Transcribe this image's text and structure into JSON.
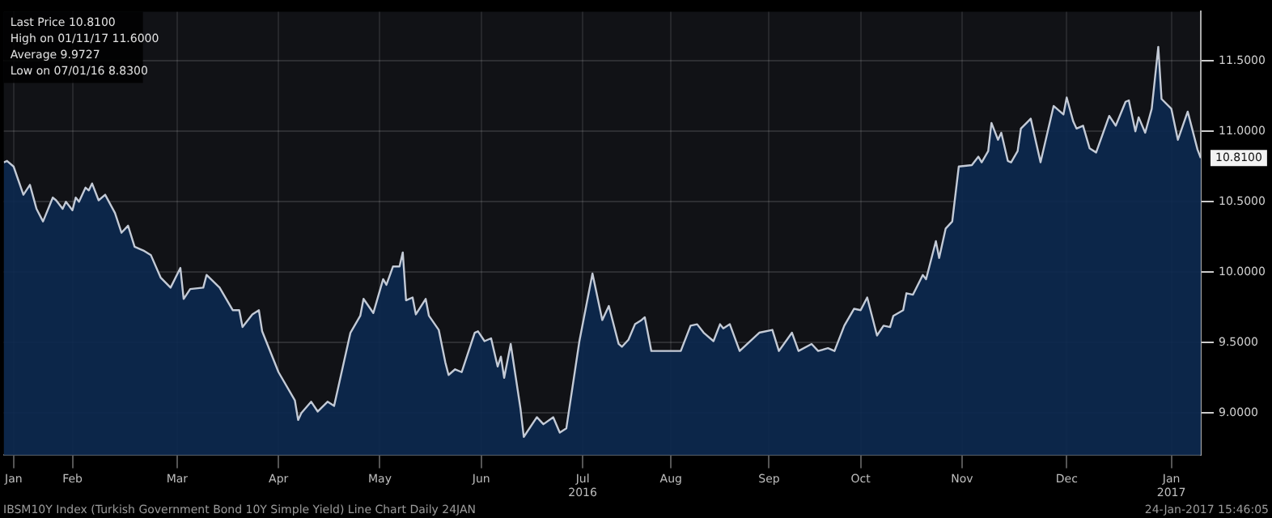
{
  "chart_data": {
    "type": "area",
    "x": [
      "2016-01-24",
      "2016-01-25",
      "2016-01-27",
      "2016-01-30",
      "2016-02-01",
      "2016-02-03",
      "2016-02-05",
      "2016-02-08",
      "2016-02-09",
      "2016-02-11",
      "2016-02-12",
      "2016-02-14",
      "2016-02-15",
      "2016-02-16",
      "2016-02-18",
      "2016-02-19",
      "2016-02-20",
      "2016-02-22",
      "2016-02-24",
      "2016-02-27",
      "2016-02-29",
      "2016-03-02",
      "2016-03-04",
      "2016-03-07",
      "2016-03-09",
      "2016-03-12",
      "2016-03-15",
      "2016-03-18",
      "2016-03-19",
      "2016-03-21",
      "2016-03-25",
      "2016-03-26",
      "2016-03-30",
      "2016-04-03",
      "2016-04-05",
      "2016-04-06",
      "2016-04-09",
      "2016-04-11",
      "2016-04-12",
      "2016-04-17",
      "2016-04-22",
      "2016-04-23",
      "2016-04-24",
      "2016-04-27",
      "2016-04-29",
      "2016-05-02",
      "2016-05-04",
      "2016-05-09",
      "2016-05-12",
      "2016-05-13",
      "2016-05-16",
      "2016-05-19",
      "2016-05-20",
      "2016-05-22",
      "2016-05-24",
      "2016-05-25",
      "2016-05-26",
      "2016-05-28",
      "2016-05-29",
      "2016-06-01",
      "2016-06-02",
      "2016-06-05",
      "2016-06-07",
      "2016-06-08",
      "2016-06-10",
      "2016-06-12",
      "2016-06-16",
      "2016-06-17",
      "2016-06-19",
      "2016-06-21",
      "2016-06-23",
      "2016-06-24",
      "2016-06-25",
      "2016-06-27",
      "2016-06-30",
      "2016-07-01",
      "2016-07-05",
      "2016-07-07",
      "2016-07-10",
      "2016-07-12",
      "2016-07-14",
      "2016-07-18",
      "2016-07-22",
      "2016-07-25",
      "2016-07-27",
      "2016-07-30",
      "2016-07-31",
      "2016-08-02",
      "2016-08-04",
      "2016-08-06",
      "2016-08-07",
      "2016-08-09",
      "2016-08-18",
      "2016-08-21",
      "2016-08-23",
      "2016-08-25",
      "2016-08-28",
      "2016-08-30",
      "2016-08-31",
      "2016-09-02",
      "2016-09-05",
      "2016-09-11",
      "2016-09-15",
      "2016-09-17",
      "2016-09-21",
      "2016-09-23",
      "2016-09-27",
      "2016-09-29",
      "2016-10-02",
      "2016-10-04",
      "2016-10-07",
      "2016-10-10",
      "2016-10-12",
      "2016-10-14",
      "2016-10-17",
      "2016-10-19",
      "2016-10-21",
      "2016-10-22",
      "2016-10-25",
      "2016-10-26",
      "2016-10-28",
      "2016-10-31",
      "2016-11-01",
      "2016-11-04",
      "2016-11-05",
      "2016-11-07",
      "2016-11-09",
      "2016-11-11",
      "2016-11-15",
      "2016-11-17",
      "2016-11-18",
      "2016-11-20",
      "2016-11-21",
      "2016-11-23",
      "2016-11-24",
      "2016-11-26",
      "2016-11-27",
      "2016-11-29",
      "2016-11-30",
      "2016-12-03",
      "2016-12-06",
      "2016-12-10",
      "2016-12-13",
      "2016-12-14",
      "2016-12-16",
      "2016-12-17",
      "2016-12-19",
      "2016-12-21",
      "2016-12-23",
      "2016-12-27",
      "2016-12-29",
      "2017-01-01",
      "2017-01-02",
      "2017-01-04",
      "2017-01-05",
      "2017-01-07",
      "2017-01-09",
      "2017-01-11",
      "2017-01-12",
      "2017-01-15",
      "2017-01-17",
      "2017-01-20",
      "2017-01-23",
      "2017-01-24"
    ],
    "series": [
      {
        "color": "#c3cad6",
        "values": [
          10.78,
          10.79,
          10.75,
          10.55,
          10.62,
          10.45,
          10.36,
          10.53,
          10.51,
          10.45,
          10.5,
          10.44,
          10.53,
          10.5,
          10.6,
          10.58,
          10.63,
          10.51,
          10.55,
          10.42,
          10.28,
          10.33,
          10.18,
          10.15,
          10.12,
          9.96,
          9.89,
          10.03,
          9.81,
          9.88,
          9.89,
          9.98,
          9.89,
          9.73,
          9.73,
          9.61,
          9.7,
          9.73,
          9.58,
          9.29,
          9.09,
          8.95,
          9.0,
          9.08,
          9.01,
          9.08,
          9.05,
          9.57,
          9.69,
          9.81,
          9.71,
          9.95,
          9.91,
          10.04,
          10.04,
          10.14,
          9.8,
          9.82,
          9.7,
          9.81,
          9.69,
          9.59,
          9.36,
          9.27,
          9.31,
          9.29,
          9.57,
          9.58,
          9.51,
          9.53,
          9.33,
          9.4,
          9.25,
          9.49,
          9.03,
          8.83,
          8.97,
          8.92,
          8.97,
          8.86,
          8.89,
          9.51,
          9.99,
          9.66,
          9.76,
          9.49,
          9.47,
          9.52,
          9.63,
          9.66,
          9.68,
          9.44,
          9.44,
          9.62,
          9.63,
          9.57,
          9.51,
          9.63,
          9.6,
          9.63,
          9.44,
          9.57,
          9.59,
          9.44,
          9.57,
          9.44,
          9.49,
          9.44,
          9.46,
          9.44,
          9.62,
          9.74,
          9.73,
          9.82,
          9.55,
          9.62,
          9.61,
          9.69,
          9.73,
          9.85,
          9.84,
          9.98,
          9.95,
          10.22,
          10.1,
          10.31,
          10.36,
          10.75,
          10.76,
          10.82,
          10.78,
          10.86,
          11.06,
          10.94,
          10.99,
          10.79,
          10.78,
          10.86,
          11.02,
          11.09,
          10.78,
          11.18,
          11.12,
          11.24,
          11.07,
          11.02,
          11.04,
          10.88,
          10.85,
          11.11,
          11.04,
          11.21,
          11.22,
          11.0,
          11.1,
          10.99,
          11.16,
          11.6,
          11.23,
          11.16,
          10.94,
          11.14,
          10.87,
          10.81
        ]
      }
    ],
    "xlim": [
      "2016-01-24",
      "2017-01-24"
    ],
    "xticks": [
      {
        "value": "2016-01-27",
        "label": "Jan"
      },
      {
        "value": "2016-02-14",
        "label": "Feb"
      },
      {
        "value": "2016-03-17",
        "label": "Mar"
      },
      {
        "value": "2016-04-17",
        "label": "Apr"
      },
      {
        "value": "2016-05-18",
        "label": "May"
      },
      {
        "value": "2016-06-18",
        "label": "Jun"
      },
      {
        "value": "2016-07-19",
        "label": "Jul\n2016"
      },
      {
        "value": "2016-08-15",
        "label": "Aug"
      },
      {
        "value": "2016-09-14",
        "label": "Sep"
      },
      {
        "value": "2016-10-12",
        "label": "Oct"
      },
      {
        "value": "2016-11-12",
        "label": "Nov"
      },
      {
        "value": "2016-12-14",
        "label": "Dec"
      },
      {
        "value": "2017-01-15",
        "label": "Jan\n2017"
      }
    ],
    "ylim": [
      8.7,
      11.85
    ],
    "yticks": [
      {
        "value": 9,
        "label": "9.0000"
      },
      {
        "value": 9.5,
        "label": "9.5000"
      },
      {
        "value": 10,
        "label": "10.0000"
      },
      {
        "value": 10.5,
        "label": "10.5000"
      },
      {
        "value": 11,
        "label": "11.0000"
      },
      {
        "value": 11.5,
        "label": "11.5000"
      }
    ],
    "grid": true,
    "annotations": [
      "Last Price 10.8100",
      "High on 01/11/17 11.6000",
      "Average 9.9727",
      "Low on 07/01/16 8.8300",
      {
        "text": "10.8100",
        "x": "2017-01-24",
        "y": 10.81
      },
      "IBSM10Y Index (Turkish Government Bond 10Y Simple Yield) Line Chart Daily 24JAN",
      "24-Jan-2017 15:46:05"
    ]
  }
}
